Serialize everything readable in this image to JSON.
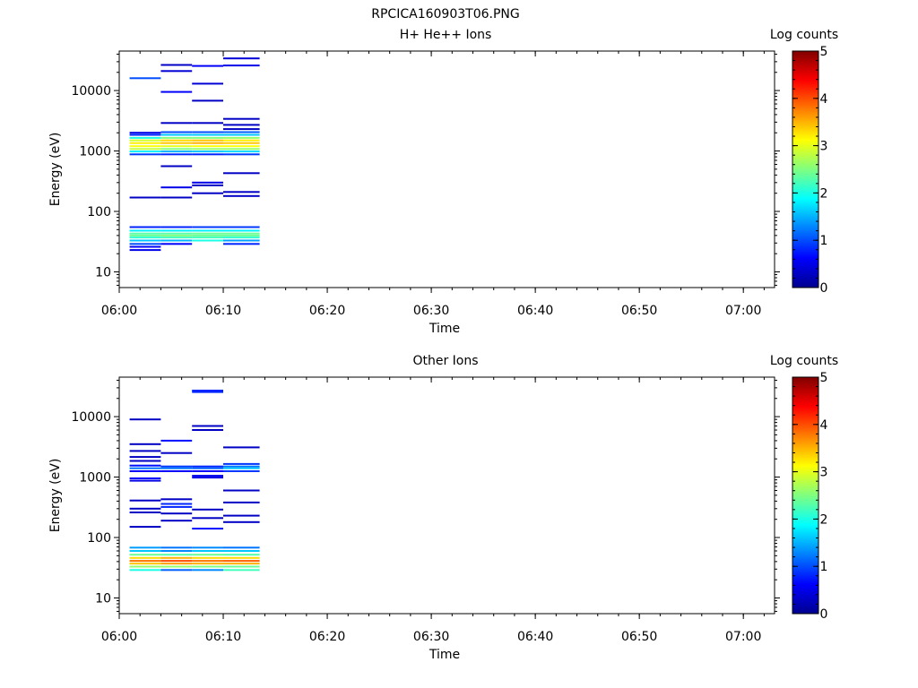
{
  "figure_title": "RPCICA160903T06.PNG",
  "chart_data": [
    {
      "type": "heatmap",
      "title": "H+ He++ Ions",
      "xlabel": "Time",
      "ylabel": "Energy (eV)",
      "x_ticks": [
        "06:00",
        "06:10",
        "06:20",
        "06:30",
        "06:40",
        "06:50",
        "07:00"
      ],
      "y_ticks": [
        "10",
        "100",
        "1000",
        "10000"
      ],
      "y_scale": "log",
      "xlim": [
        "06:00",
        "07:03"
      ],
      "ylim": [
        5.5,
        45000
      ],
      "colorbar": {
        "label": "Log counts",
        "ticks": [
          "0",
          "1",
          "2",
          "3",
          "4",
          "5"
        ],
        "range": [
          0,
          5
        ],
        "colormap": "jet"
      },
      "columns": [
        {
          "start": "06:01",
          "end": "06:04",
          "cells": [
            [
              16000,
              1.0
            ],
            [
              2000,
              0.5
            ],
            [
              1850,
              0.8
            ],
            [
              1650,
              2.0
            ],
            [
              1500,
              2.9
            ],
            [
              1350,
              3.2
            ],
            [
              1200,
              3.1
            ],
            [
              1080,
              2.8
            ],
            [
              980,
              1.8
            ],
            [
              880,
              0.9
            ],
            [
              170,
              0.3
            ],
            [
              55,
              0.8
            ],
            [
              48,
              1.8
            ],
            [
              43,
              2.3
            ],
            [
              40,
              2.4
            ],
            [
              37,
              2.1
            ],
            [
              33,
              1.6
            ],
            [
              29,
              1.0
            ],
            [
              26,
              0.6
            ],
            [
              23,
              0.5
            ]
          ]
        },
        {
          "start": "06:04",
          "end": "06:07",
          "cells": [
            [
              26500,
              0.3
            ],
            [
              21000,
              0.4
            ],
            [
              9500,
              0.6
            ],
            [
              2900,
              0.3
            ],
            [
              2050,
              1.0
            ],
            [
              1850,
              1.6
            ],
            [
              1650,
              2.5
            ],
            [
              1500,
              3.3
            ],
            [
              1350,
              3.4
            ],
            [
              1200,
              3.0
            ],
            [
              1080,
              2.5
            ],
            [
              980,
              1.5
            ],
            [
              880,
              0.8
            ],
            [
              560,
              0.3
            ],
            [
              250,
              0.5
            ],
            [
              170,
              0.3
            ],
            [
              55,
              0.8
            ],
            [
              48,
              1.8
            ],
            [
              43,
              2.3
            ],
            [
              40,
              2.5
            ],
            [
              37,
              2.2
            ],
            [
              33,
              1.5
            ],
            [
              29,
              0.6
            ]
          ]
        },
        {
          "start": "06:07",
          "end": "06:10",
          "cells": [
            [
              25500,
              0.6
            ],
            [
              13000,
              0.4
            ],
            [
              6800,
              0.3
            ],
            [
              2900,
              0.3
            ],
            [
              2050,
              1.0
            ],
            [
              1850,
              1.6
            ],
            [
              1650,
              2.5
            ],
            [
              1500,
              3.4
            ],
            [
              1350,
              3.5
            ],
            [
              1200,
              3.1
            ],
            [
              1080,
              2.6
            ],
            [
              980,
              1.6
            ],
            [
              880,
              0.8
            ],
            [
              300,
              0.5
            ],
            [
              270,
              0.3
            ],
            [
              200,
              0.3
            ],
            [
              55,
              0.9
            ],
            [
              48,
              1.8
            ],
            [
              43,
              2.4
            ],
            [
              40,
              2.4
            ],
            [
              37,
              2.2
            ],
            [
              33,
              2.0
            ]
          ]
        },
        {
          "start": "06:10",
          "end": "06:13.5",
          "cells": [
            [
              34000,
              0.4
            ],
            [
              26000,
              0.5
            ],
            [
              3400,
              0.3
            ],
            [
              2700,
              0.3
            ],
            [
              2300,
              0.3
            ],
            [
              2050,
              1.1
            ],
            [
              1850,
              1.6
            ],
            [
              1650,
              2.6
            ],
            [
              1500,
              3.2
            ],
            [
              1350,
              3.4
            ],
            [
              1200,
              3.1
            ],
            [
              1080,
              2.6
            ],
            [
              980,
              1.7
            ],
            [
              880,
              0.9
            ],
            [
              430,
              0.3
            ],
            [
              210,
              0.3
            ],
            [
              180,
              0.3
            ],
            [
              55,
              0.9
            ],
            [
              48,
              1.8
            ],
            [
              43,
              2.4
            ],
            [
              40,
              2.4
            ],
            [
              37,
              2.1
            ],
            [
              33,
              1.4
            ],
            [
              29,
              0.8
            ]
          ]
        }
      ]
    },
    {
      "type": "heatmap",
      "title": "Other Ions",
      "xlabel": "Time",
      "ylabel": "Energy (eV)",
      "x_ticks": [
        "06:00",
        "06:10",
        "06:20",
        "06:30",
        "06:40",
        "06:50",
        "07:00"
      ],
      "y_ticks": [
        "10",
        "100",
        "1000",
        "10000"
      ],
      "y_scale": "log",
      "xlim": [
        "06:00",
        "07:03"
      ],
      "ylim": [
        5.5,
        45000
      ],
      "colorbar": {
        "label": "Log counts",
        "ticks": [
          "0",
          "1",
          "2",
          "3",
          "4",
          "5"
        ],
        "range": [
          0,
          5
        ],
        "colormap": "jet"
      },
      "columns": [
        {
          "start": "06:01",
          "end": "06:04",
          "cells": [
            [
              9000,
              0.3
            ],
            [
              3500,
              0.3
            ],
            [
              2700,
              0.3
            ],
            [
              2150,
              0.3
            ],
            [
              1850,
              0.3
            ],
            [
              1550,
              0.7
            ],
            [
              1400,
              1.2
            ],
            [
              1250,
              0.6
            ],
            [
              950,
              0.6
            ],
            [
              870,
              0.5
            ],
            [
              410,
              0.3
            ],
            [
              300,
              0.3
            ],
            [
              260,
              0.3
            ],
            [
              150,
              0.3
            ],
            [
              68,
              1.4
            ],
            [
              60,
              1.6
            ],
            [
              52,
              2.4
            ],
            [
              46,
              3.3
            ],
            [
              41,
              3.8
            ],
            [
              37,
              3.4
            ],
            [
              33,
              2.6
            ],
            [
              29,
              2.0
            ]
          ]
        },
        {
          "start": "06:04",
          "end": "06:07",
          "cells": [
            [
              4000,
              0.7
            ],
            [
              2500,
              0.3
            ],
            [
              1500,
              0.9
            ],
            [
              1400,
              1.2
            ],
            [
              1250,
              0.6
            ],
            [
              430,
              0.3
            ],
            [
              360,
              0.8
            ],
            [
              320,
              0.8
            ],
            [
              250,
              0.3
            ],
            [
              190,
              0.3
            ],
            [
              68,
              1.2
            ],
            [
              60,
              1.3
            ],
            [
              52,
              2.3
            ],
            [
              46,
              3.5
            ],
            [
              41,
              4.0
            ],
            [
              37,
              3.6
            ],
            [
              33,
              2.6
            ],
            [
              29,
              1.1
            ]
          ]
        },
        {
          "start": "06:07",
          "end": "06:10",
          "cells": [
            [
              27000,
              0.8
            ],
            [
              25500,
              0.8
            ],
            [
              7000,
              0.3
            ],
            [
              6000,
              0.3
            ],
            [
              1500,
              0.8
            ],
            [
              1400,
              1.1
            ],
            [
              1250,
              0.6
            ],
            [
              1050,
              0.5
            ],
            [
              980,
              0.5
            ],
            [
              290,
              0.3
            ],
            [
              210,
              0.3
            ],
            [
              140,
              0.7
            ],
            [
              68,
              1.3
            ],
            [
              60,
              1.6
            ],
            [
              52,
              2.4
            ],
            [
              46,
              3.3
            ],
            [
              41,
              3.8
            ],
            [
              37,
              3.5
            ],
            [
              33,
              2.5
            ],
            [
              29,
              1.3
            ]
          ]
        },
        {
          "start": "06:10",
          "end": "06:13.5",
          "cells": [
            [
              3100,
              0.3
            ],
            [
              1650,
              0.9
            ],
            [
              1500,
              1.2
            ],
            [
              1400,
              1.6
            ],
            [
              1250,
              0.9
            ],
            [
              600,
              0.3
            ],
            [
              380,
              0.3
            ],
            [
              230,
              0.3
            ],
            [
              180,
              0.3
            ],
            [
              68,
              1.2
            ],
            [
              60,
              1.6
            ],
            [
              52,
              2.3
            ],
            [
              46,
              3.3
            ],
            [
              41,
              3.9
            ],
            [
              37,
              3.5
            ],
            [
              33,
              2.4
            ],
            [
              29,
              2.2
            ]
          ]
        }
      ]
    }
  ]
}
